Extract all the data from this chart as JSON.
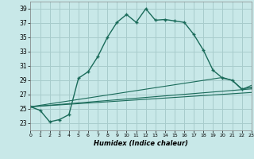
{
  "xlabel": "Humidex (Indice chaleur)",
  "background_color": "#c8e8e8",
  "grid_color": "#a8cccc",
  "line_color": "#1a6b5a",
  "xlim": [
    0,
    23
  ],
  "ylim": [
    22,
    40
  ],
  "yticks": [
    23,
    25,
    27,
    29,
    31,
    33,
    35,
    37,
    39
  ],
  "xticks": [
    0,
    1,
    2,
    3,
    4,
    5,
    6,
    7,
    8,
    9,
    10,
    11,
    12,
    13,
    14,
    15,
    16,
    17,
    18,
    19,
    20,
    21,
    22,
    23
  ],
  "main_x": [
    0,
    1,
    2,
    3,
    4,
    5,
    6,
    7,
    8,
    9,
    10,
    11,
    12,
    13,
    14,
    15,
    16,
    17,
    18,
    19,
    20,
    21,
    22,
    23
  ],
  "main_y": [
    25.3,
    24.8,
    23.2,
    23.5,
    24.2,
    29.3,
    30.2,
    32.3,
    35.0,
    37.1,
    38.2,
    37.1,
    39.0,
    37.4,
    37.5,
    37.3,
    37.1,
    35.4,
    33.2,
    30.4,
    29.3,
    29.0,
    27.8,
    28.0
  ],
  "flat_series": [
    {
      "x": [
        0,
        23
      ],
      "y": [
        25.3,
        27.3
      ]
    },
    {
      "x": [
        0,
        23
      ],
      "y": [
        25.3,
        27.8
      ]
    },
    {
      "x": [
        0,
        20,
        21,
        22,
        23
      ],
      "y": [
        25.3,
        29.4,
        29.0,
        27.7,
        28.3
      ]
    }
  ]
}
